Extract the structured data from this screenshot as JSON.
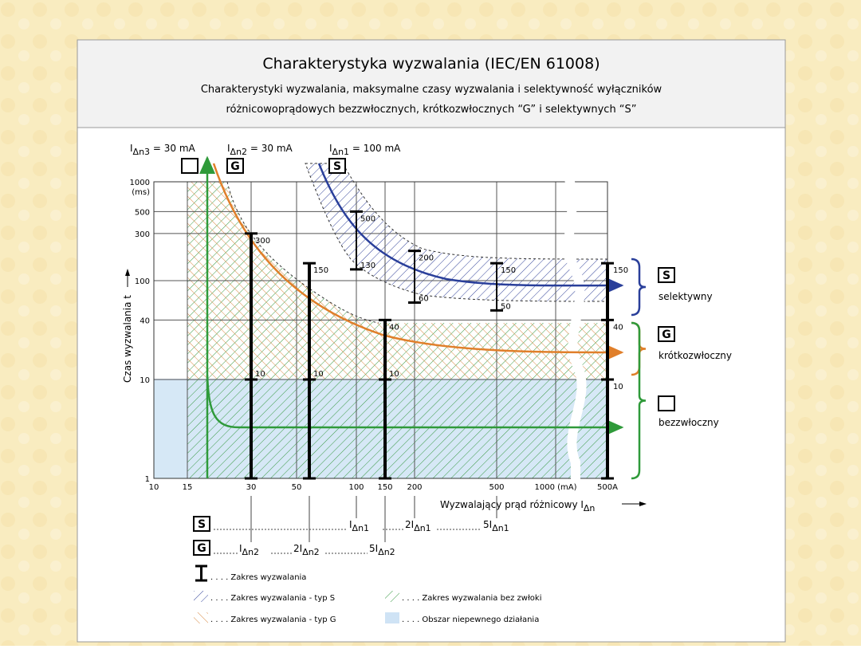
{
  "header": {
    "title": "Charakterystyka wyzwalania (IEC/EN 61008)",
    "subtitle_lines": [
      "Charakterystyki wyzwalania, maksymalne czasy wyzwalania i selektywność wyłączników",
      "różnicowoprądowych bezzwłocznych, krótkozwłocznych “G” i selektywnych “S”"
    ]
  },
  "chart": {
    "top_labels": [
      {
        "main": "I",
        "sub": "Δn3",
        "rest": " = 30 mA",
        "box": ""
      },
      {
        "main": "I",
        "sub": "Δn2",
        "rest": " = 30 mA",
        "box": "G"
      },
      {
        "main": "I",
        "sub": "Δn1",
        "rest": " = 100 mA",
        "box": "S"
      }
    ],
    "y_label": "Czas wyzwalania  t",
    "y_unit": "(ms)",
    "yticks": [
      1000,
      500,
      300,
      100,
      40,
      10,
      1
    ],
    "xticks": [
      "10",
      "15",
      "30",
      "50",
      "100",
      "150",
      "200",
      "500",
      "1000 (mA)",
      "500A"
    ],
    "x_label": {
      "main": "Wyzwalający prąd różnicowy I",
      "sub": "Δn"
    },
    "trip_bars": [
      {
        "top": 300,
        "mark": 10
      },
      {
        "top": 150,
        "mark": 10
      },
      {
        "top": 40,
        "mark": 10
      }
    ],
    "selective_bars": [
      {
        "top": 500,
        "bottom": 130
      },
      {
        "top": 200,
        "bottom": 60
      },
      {
        "top": 150,
        "bottom": 50
      }
    ],
    "end_bar": {
      "top": 150,
      "marks": [
        40,
        10
      ]
    },
    "side_labels": [
      {
        "box": "S",
        "text": "selektywny"
      },
      {
        "box": "G",
        "text": "krótkozwłoczny"
      },
      {
        "box": "",
        "text": "bezzwłoczny"
      }
    ]
  },
  "multiples": {
    "S": {
      "box": "S",
      "items": [
        {
          "main": "I",
          "sub": "Δn1"
        },
        {
          "main": "2I",
          "sub": "Δn1"
        },
        {
          "main": "5I",
          "sub": "Δn1"
        }
      ]
    },
    "G": {
      "box": "G",
      "items": [
        {
          "main": "I",
          "sub": "Δn2"
        },
        {
          "main": "2I",
          "sub": "Δn2"
        },
        {
          "main": "5I",
          "sub": "Δn2"
        }
      ]
    }
  },
  "legend": [
    ". . . . Zakres wyzwalania",
    ". . . . Zakres wyzwalania - typ S",
    ". . . . Zakres wyzwalania bez zwłoki",
    ". . . . Zakres wyzwalania - typ G",
    ". . . . Obszar niepewnego działania"
  ]
}
